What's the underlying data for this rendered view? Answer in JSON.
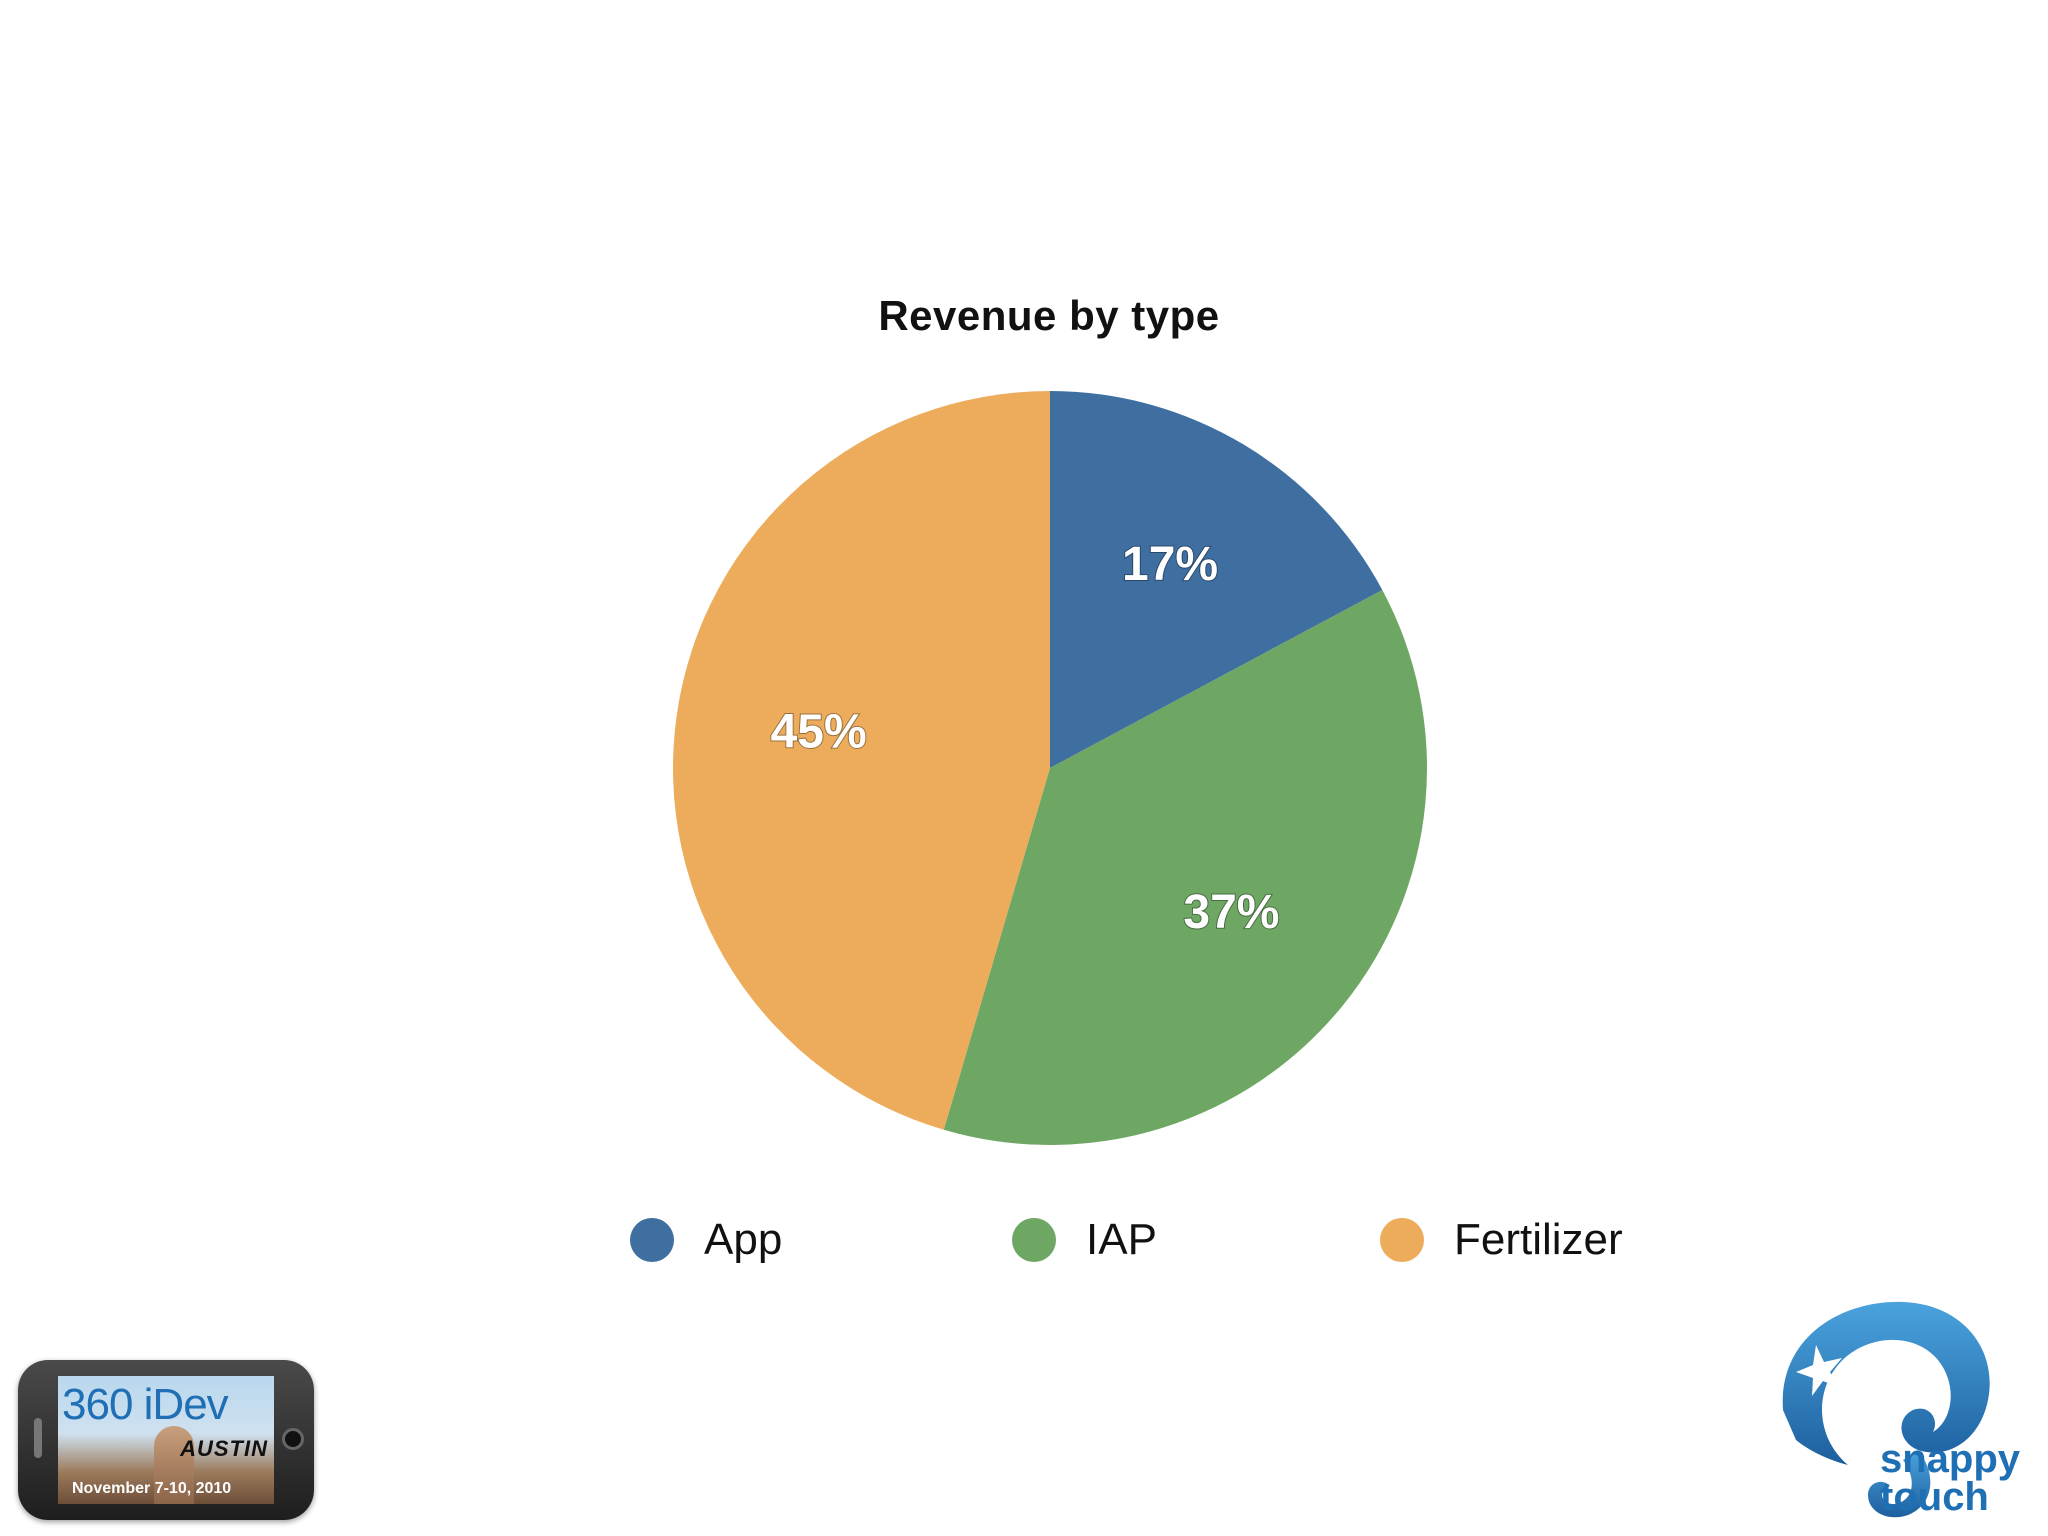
{
  "chart_data": {
    "type": "pie",
    "title": "Revenue by type",
    "categories": [
      "App",
      "IAP",
      "Fertilizer"
    ],
    "values": [
      17,
      37,
      45
    ],
    "labels": [
      "17%",
      "37%",
      "45%"
    ],
    "colors": [
      "#3f6ea1",
      "#6ea764",
      "#ecac5c"
    ],
    "start": "12 o'clock",
    "direction": "clockwise",
    "legend": "bottom"
  },
  "badges": {
    "event_brand": "360 iDev",
    "event_city": "AUSTIN",
    "event_dates": "November 7-10, 2010",
    "company_line1": "snappy",
    "company_line2": "touch"
  }
}
